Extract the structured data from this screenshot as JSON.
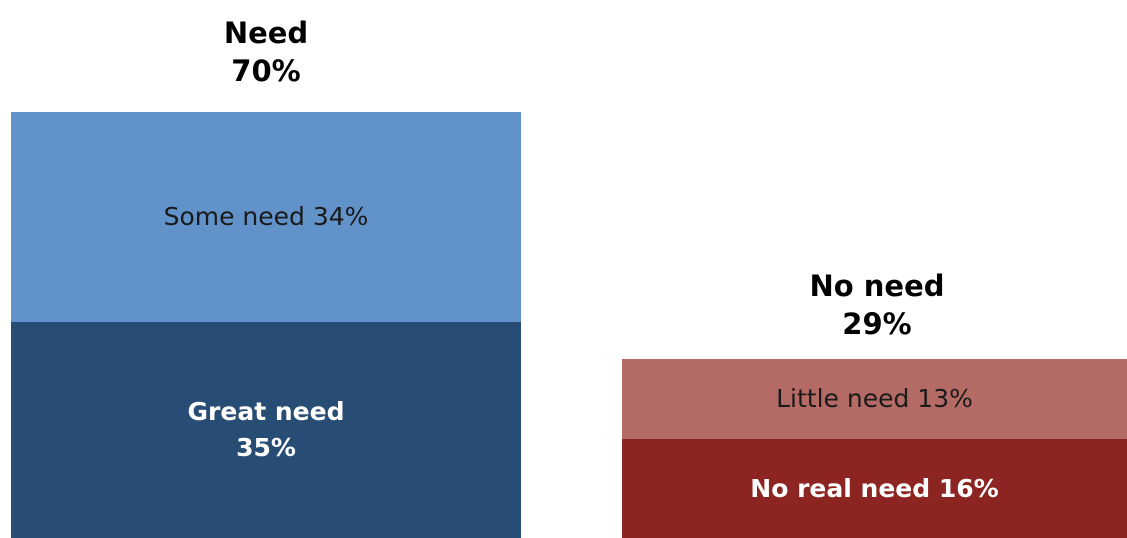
{
  "chart_data": {
    "type": "bar",
    "stacked": true,
    "title": "",
    "xlabel": "",
    "ylabel": "",
    "ylim": [
      0,
      70
    ],
    "grid": false,
    "legend": "none",
    "stacks": [
      {
        "title": "Need",
        "total_label": "70%",
        "total": 70,
        "segments": [
          {
            "label": "Great need\n35%",
            "value": 35,
            "color": "#284d75",
            "text_color": "light"
          },
          {
            "label": "Some need 34%",
            "value": 34,
            "color": "#6192c9",
            "text_color": "dark"
          }
        ]
      },
      {
        "title": "No need",
        "total_label": "29%",
        "total": 29,
        "segments": [
          {
            "label": "No real need 16%",
            "value": 16,
            "color": "#8c2421",
            "text_color": "light"
          },
          {
            "label": "Little need 13%",
            "value": 13,
            "color": "#b46b66",
            "text_color": "dark"
          }
        ]
      }
    ]
  }
}
